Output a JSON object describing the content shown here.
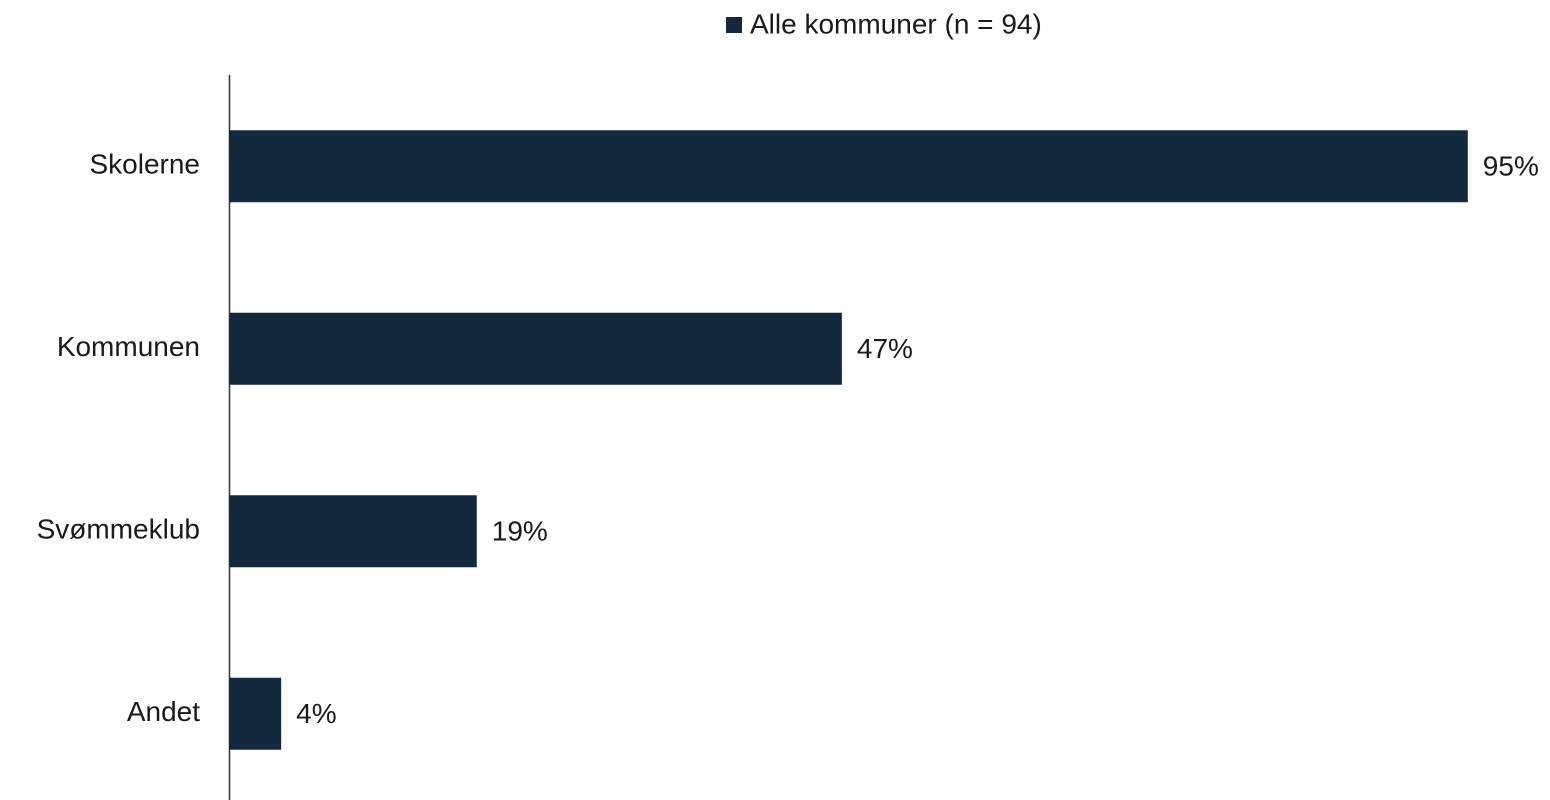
{
  "chart_data": {
    "type": "bar",
    "orientation": "horizontal",
    "categories": [
      "Skolerne",
      "Kommunen",
      "Svømmeklub",
      "Andet"
    ],
    "series": [
      {
        "name": "Alle kommuner (n = 94)",
        "color": "#13293d",
        "values": [
          95,
          47,
          19,
          4
        ],
        "value_labels": [
          "95%",
          "47%",
          "19%",
          "4%"
        ]
      }
    ],
    "legend": "top"
  }
}
